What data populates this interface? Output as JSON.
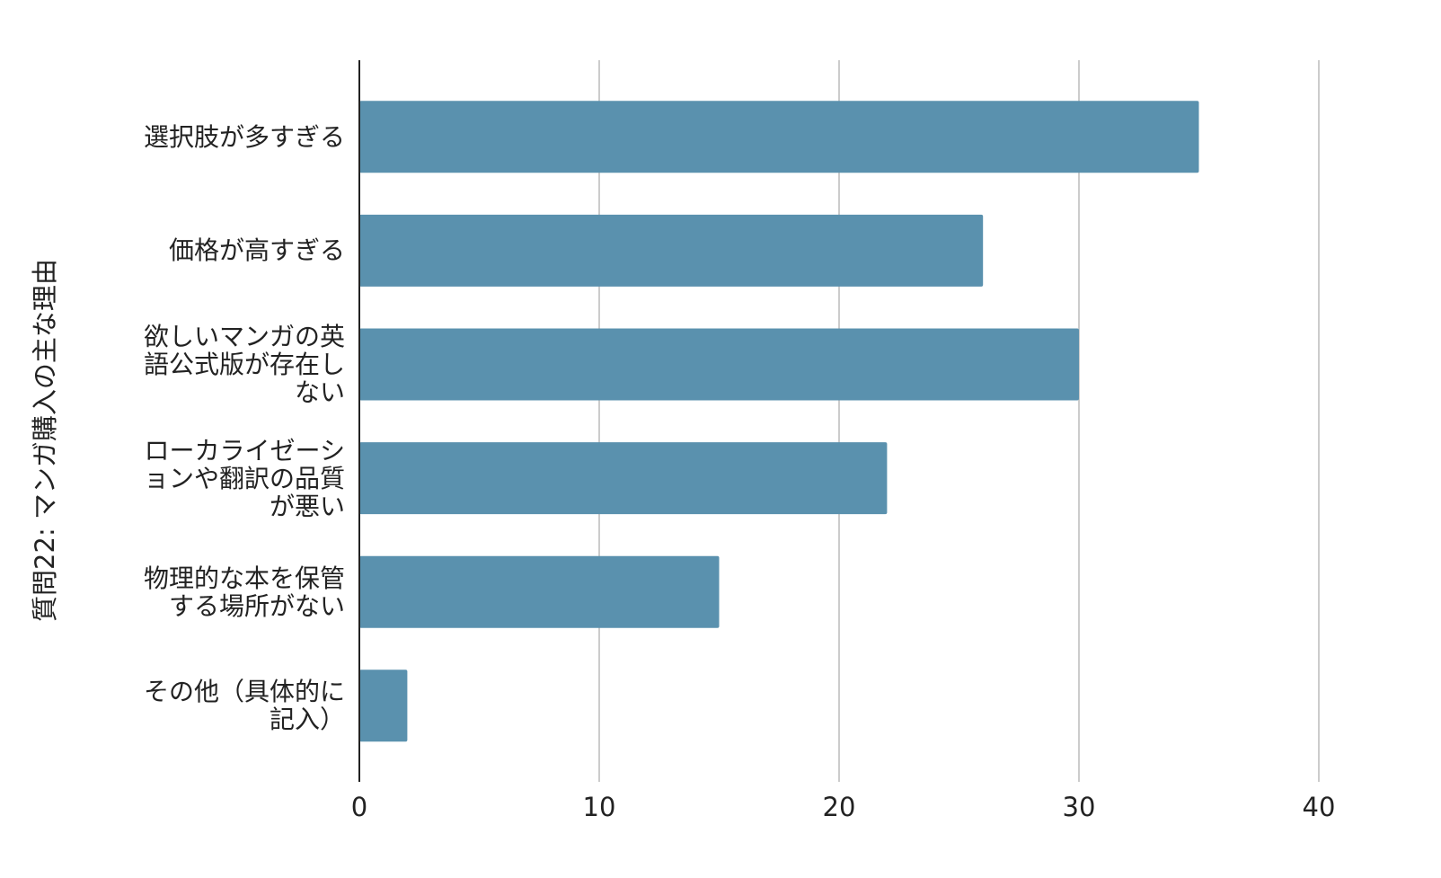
{
  "chart_data": {
    "type": "barh",
    "ylabel": "質問22: マンガ購入の主な理由",
    "categories": [
      "選択肢が多すぎる",
      "価格が高すぎる",
      "欲しいマンガの英語公式版が存在しない",
      "ローカライゼーションや翻訳の品質が悪い",
      "物理的な本を保管する場所がない",
      "その他（具体的に記入）"
    ],
    "values": [
      35,
      26,
      30,
      22,
      15,
      2
    ],
    "color": "#5a91ae",
    "xlim": [
      0,
      40
    ],
    "xticks": [
      0,
      10,
      20,
      30,
      40
    ],
    "grid": true
  }
}
